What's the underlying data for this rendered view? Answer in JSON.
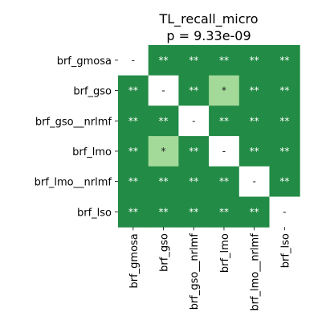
{
  "chart_data": {
    "type": "heatmap",
    "title": "TL_recall_micro",
    "subtitle": "p = 9.33e-09",
    "rows": [
      "brf_gmosa",
      "brf_gso",
      "brf_gso__nrlmf",
      "brf_lmo",
      "brf_lmo__nrlmf",
      "brf_lso"
    ],
    "columns": [
      "brf_gmosa",
      "brf_gso",
      "brf_gso__nrlmf",
      "brf_lmo",
      "brf_lmo__nrlmf",
      "brf_lso"
    ],
    "cells": [
      [
        "-",
        "**",
        "**",
        "**",
        "**",
        "**"
      ],
      [
        "**",
        "-",
        "**",
        "*",
        "**",
        "**"
      ],
      [
        "**",
        "**",
        "-",
        "**",
        "**",
        "**"
      ],
      [
        "**",
        "*",
        "**",
        "-",
        "**",
        "**"
      ],
      [
        "**",
        "**",
        "**",
        "**",
        "-",
        "**"
      ],
      [
        "**",
        "**",
        "**",
        "**",
        "**",
        "-"
      ]
    ],
    "colors": {
      "**": "#228b45",
      "*": "#a3da99",
      "-": "#ffffff"
    },
    "label_colors": {
      "**": "#ffffff",
      "*": "#1a1a1a",
      "-": "#1a1a1a"
    },
    "grid": false
  }
}
